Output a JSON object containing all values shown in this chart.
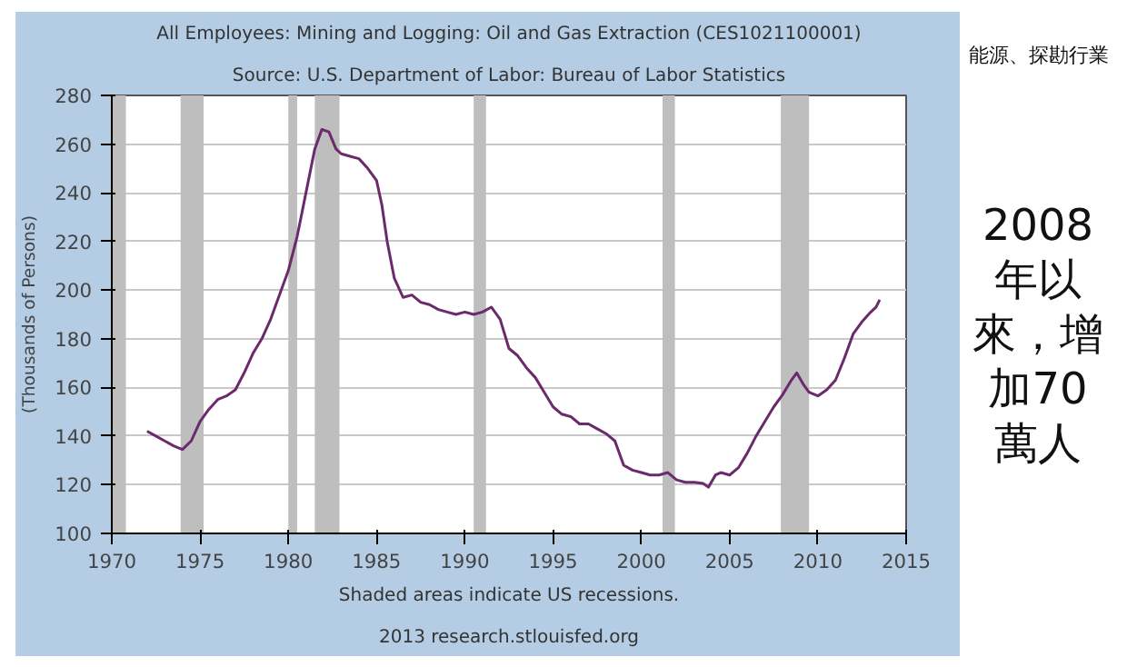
{
  "chart_data": {
    "type": "line",
    "title": "All Employees: Mining and Logging: Oil and Gas Extraction (CES1021100001)",
    "subtitle": "Source: U.S. Department of Labor: Bureau of Labor Statistics",
    "ylabel": "(Thousands of Persons)",
    "annotations": [
      "Shaded areas indicate US recessions.",
      "2013 research.stlouisfed.org",
      "能源、探勘行業",
      "2008年以來，增加70萬人"
    ],
    "xlim": [
      1970,
      2015
    ],
    "ylim": [
      100,
      280
    ],
    "xticks": [
      1970,
      1975,
      1980,
      1985,
      1990,
      1995,
      2000,
      2005,
      2010,
      2015
    ],
    "yticks": [
      100,
      120,
      140,
      160,
      180,
      200,
      220,
      240,
      260,
      280
    ],
    "grid": "y",
    "bands": [
      {
        "axis": "x",
        "from": 1970,
        "to": 1970.8,
        "color": "#bebebe"
      },
      {
        "axis": "x",
        "from": 1973.9,
        "to": 1975.2,
        "color": "#bebebe"
      },
      {
        "axis": "x",
        "from": 1980.0,
        "to": 1980.5,
        "color": "#bebebe"
      },
      {
        "axis": "x",
        "from": 1981.5,
        "to": 1982.9,
        "color": "#bebebe"
      },
      {
        "axis": "x",
        "from": 1990.5,
        "to": 1991.2,
        "color": "#bebebe"
      },
      {
        "axis": "x",
        "from": 2001.2,
        "to": 2001.9,
        "color": "#bebebe"
      },
      {
        "axis": "x",
        "from": 2007.9,
        "to": 2009.5,
        "color": "#bebebe"
      }
    ],
    "series": [
      {
        "color": "#6b2a6b",
        "x": [
          1972.0,
          1972.5,
          1973,
          1973.5,
          1974,
          1974.5,
          1975,
          1975.5,
          1976,
          1976.5,
          1977,
          1977.5,
          1978,
          1978.5,
          1979,
          1979.5,
          1980,
          1980.5,
          1981,
          1981.5,
          1981.9,
          1982.3,
          1982.7,
          1983,
          1983.5,
          1984,
          1984.5,
          1985,
          1985.3,
          1985.6,
          1986,
          1986.5,
          1987,
          1987.5,
          1988,
          1988.5,
          1989,
          1989.5,
          1990,
          1990.5,
          1991,
          1991.5,
          1992,
          1992.5,
          1993,
          1993.5,
          1994,
          1994.5,
          1995,
          1995.5,
          1996,
          1996.5,
          1997,
          1997.5,
          1998,
          1998.5,
          1999,
          1999.5,
          2000,
          2000.5,
          2001,
          2001.5,
          2002,
          2002.5,
          2003,
          2003.5,
          2003.8,
          2004.2,
          2004.5,
          2005,
          2005.5,
          2006,
          2006.5,
          2007,
          2007.5,
          2008,
          2008.5,
          2008.8,
          2009.2,
          2009.5,
          2010,
          2010.5,
          2011,
          2011.5,
          2012,
          2012.5,
          2013,
          2013.3,
          2013.5
        ],
        "values": [
          142,
          140,
          138,
          136,
          134.5,
          138,
          146,
          151,
          155,
          156.5,
          159,
          166,
          174,
          180,
          188,
          198,
          208,
          222,
          240,
          258,
          266,
          265,
          258,
          256,
          255,
          254,
          250,
          245,
          235,
          220,
          205,
          197,
          198,
          195,
          194,
          192,
          191,
          190,
          191,
          190,
          191,
          193,
          188,
          176,
          173,
          168,
          164,
          158,
          152,
          149,
          148,
          145,
          145,
          143,
          141,
          138,
          128,
          126,
          125,
          124,
          124,
          125,
          122,
          121,
          121,
          120.5,
          119,
          124,
          125,
          124,
          127,
          133,
          140,
          146,
          152,
          157,
          163,
          166,
          161,
          158,
          156.5,
          159,
          163,
          172,
          182,
          187,
          191,
          193,
          196
        ]
      }
    ]
  }
}
